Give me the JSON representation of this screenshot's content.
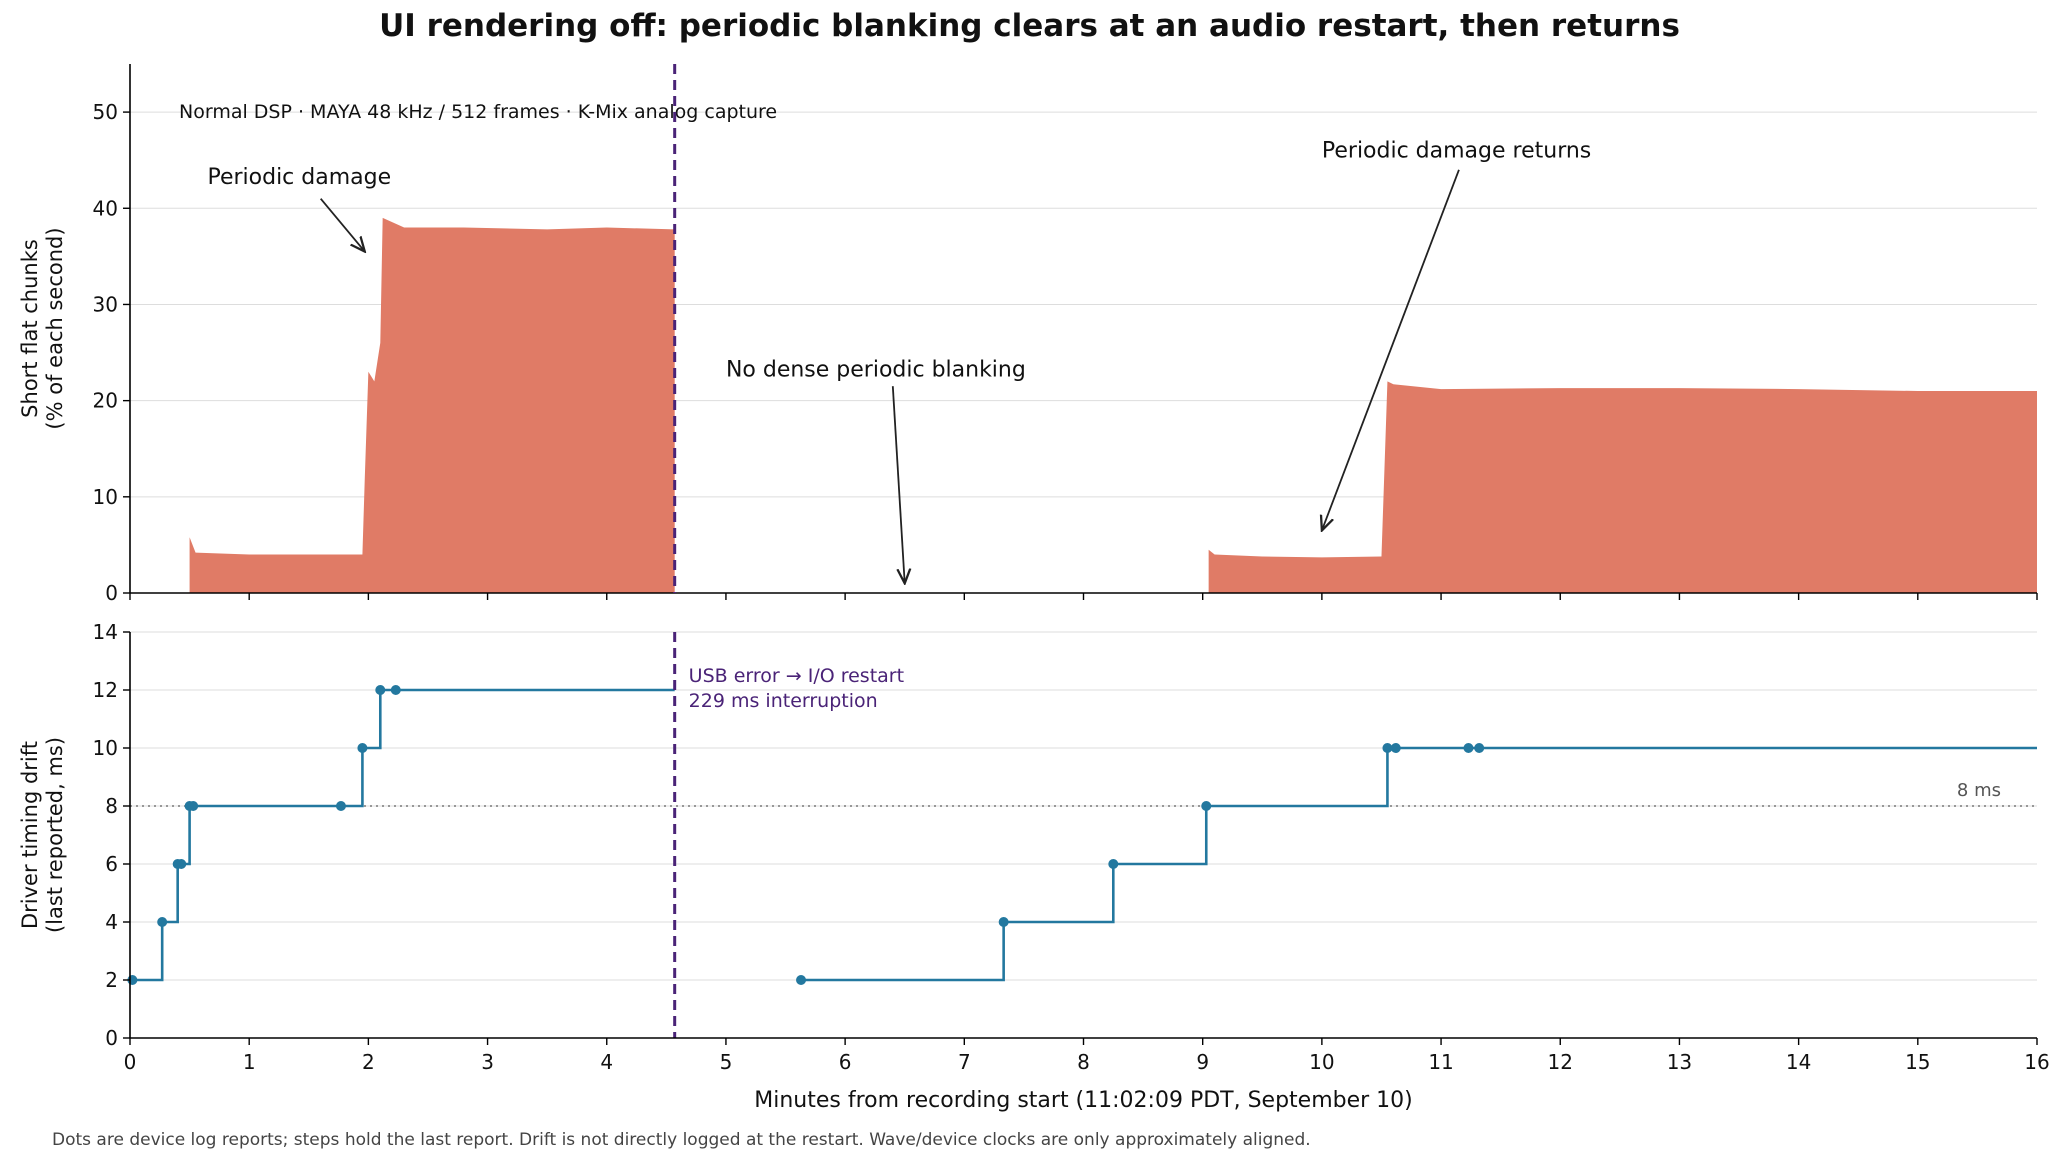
{
  "title": "UI rendering off: periodic blanking clears at an audio restart, then returns",
  "footer": "Dots are device log reports; steps hold the last report. Drift is not directly logged at the restart. Wave/device clocks are only approximately aligned.",
  "colors": {
    "area": "#e07b66",
    "line": "#23789f",
    "restart": "#4a2377",
    "grid": "#dddddd",
    "threshold": "#777777"
  },
  "chart_data": [
    {
      "type": "area",
      "ylabel": "Short flat chunks\n(% of each second)",
      "xlim": [
        0,
        16
      ],
      "ylim": [
        0,
        55
      ],
      "yticks": [
        0,
        10,
        20,
        30,
        40,
        50
      ],
      "grid": true,
      "info_text": "Normal DSP · MAYA 48 kHz / 512 frames · K-Mix analog capture",
      "segments": [
        {
          "x": [
            0.5,
            0.55,
            1.0,
            1.5,
            1.95,
            1.97,
            2.0,
            2.05,
            2.1,
            2.12,
            2.3,
            2.8,
            3.5,
            4.0,
            4.57
          ],
          "y": [
            5.8,
            4.2,
            4.0,
            4.0,
            4.0,
            12.0,
            23.0,
            22.0,
            26.0,
            39.0,
            38.0,
            38.0,
            37.8,
            38.0,
            37.8
          ]
        },
        {
          "x": [
            9.05,
            9.1,
            9.5,
            10.0,
            10.5,
            10.55,
            10.6,
            11.0,
            12.0,
            13.0,
            14.0,
            15.0,
            16.0
          ],
          "y": [
            4.5,
            4.0,
            3.8,
            3.7,
            3.8,
            22.0,
            21.7,
            21.2,
            21.3,
            21.3,
            21.2,
            21.0,
            21.0
          ]
        }
      ],
      "annotations": [
        {
          "text": "Periodic damage",
          "text_x": 0.65,
          "text_y": 42.5,
          "arrow_from": [
            1.6,
            41.0
          ],
          "arrow_to": [
            1.97,
            35.5
          ]
        },
        {
          "text": "No dense periodic blanking",
          "text_x": 5.0,
          "text_y": 22.5,
          "arrow_from": [
            6.4,
            21.5
          ],
          "arrow_to": [
            6.5,
            1.0
          ]
        },
        {
          "text": "Periodic damage returns",
          "text_x": 10.0,
          "text_y": 45.3,
          "arrow_from": [
            11.15,
            44.0
          ],
          "arrow_to": [
            10.0,
            6.5
          ]
        }
      ]
    },
    {
      "type": "line",
      "style": "step-post",
      "ylabel": "Driver timing drift\n(last reported, ms)",
      "xlabel": "Minutes from recording start (11:02:09 PDT, September 10)",
      "xlim": [
        0,
        16
      ],
      "ylim": [
        0,
        14
      ],
      "xticks": [
        0,
        1,
        2,
        3,
        4,
        5,
        6,
        7,
        8,
        9,
        10,
        11,
        12,
        13,
        14,
        15,
        16
      ],
      "yticks": [
        0,
        2,
        4,
        6,
        8,
        10,
        12,
        14
      ],
      "grid": true,
      "segments": [
        {
          "points": [
            [
              0.02,
              2
            ],
            [
              0.27,
              4
            ],
            [
              0.4,
              6
            ],
            [
              0.43,
              6
            ],
            [
              0.5,
              8
            ],
            [
              0.53,
              8
            ],
            [
              1.77,
              8
            ],
            [
              1.95,
              10
            ],
            [
              2.1,
              12
            ],
            [
              2.23,
              12
            ]
          ],
          "end_x": 4.57
        },
        {
          "points": [
            [
              5.63,
              2
            ],
            [
              7.33,
              4
            ],
            [
              8.25,
              6
            ],
            [
              9.03,
              8
            ],
            [
              10.55,
              10
            ],
            [
              10.62,
              10
            ],
            [
              11.23,
              10
            ],
            [
              11.32,
              10
            ]
          ],
          "end_x": 16
        }
      ],
      "threshold": {
        "y": 8,
        "label": "8 ms"
      },
      "restart_x": 4.57,
      "restart_label": [
        "USB error → I/O restart",
        "229 ms interruption"
      ]
    }
  ]
}
